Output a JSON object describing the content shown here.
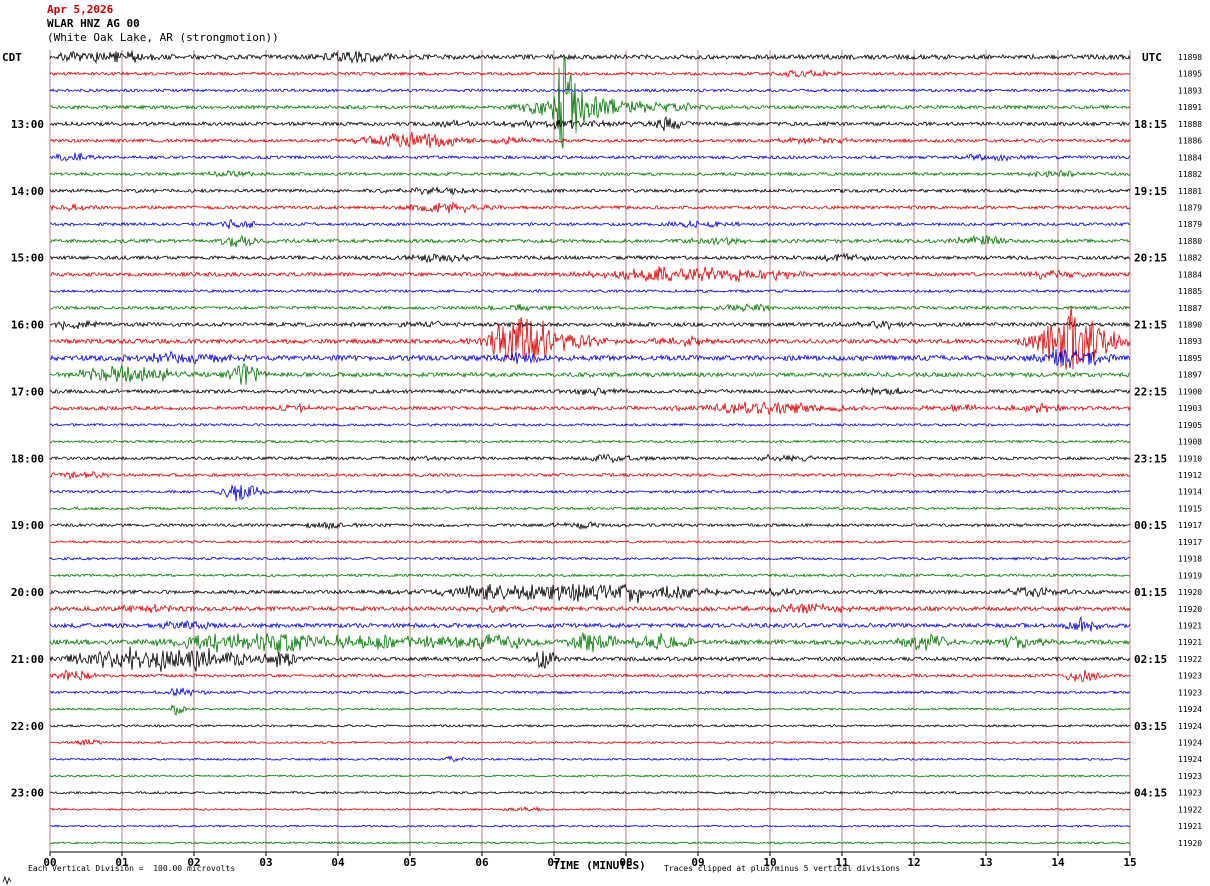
{
  "header": {
    "date": "Apr 5,2026",
    "station": "WLAR HNZ AG 00",
    "location": "(White Oak Lake, AR (strongmotion))"
  },
  "axes": {
    "left_tz": "CDT",
    "right_tz": "UTC",
    "x_title": "TIME (MINUTES)",
    "x_ticks": [
      "00",
      "01",
      "02",
      "03",
      "04",
      "05",
      "06",
      "07",
      "08",
      "09",
      "10",
      "11",
      "12",
      "13",
      "14",
      "15"
    ]
  },
  "footer": {
    "scale_note": "Each Vertical Division =  100.00 microvolts",
    "clip_note": "Traces clipped at plus/minus 5 vertical divisions"
  },
  "chart_data": {
    "type": "line",
    "title": "WLAR HNZ AG 00 helicorder (White Oak Lake, AR strongmotion)",
    "x_range_minutes": [
      0,
      15
    ],
    "minutes_per_row": 15,
    "grid": "vertical lines each minute",
    "grid_color": "#bb7f7f",
    "palette": {
      "black": "#000000",
      "red": "#dd0000",
      "blue": "#0000dd",
      "green": "#007700"
    },
    "clip_divisions": 5,
    "rows": [
      {
        "left": "",
        "right": "",
        "counter": 11898,
        "color": "black",
        "noise": 2.3,
        "events": [
          [
            1.0,
            5,
            0.45
          ],
          [
            4.3,
            5,
            0.4
          ],
          [
            0.3,
            3,
            0.2
          ]
        ]
      },
      {
        "left": "",
        "right": "",
        "counter": 11895,
        "color": "red",
        "noise": 1.5,
        "events": [
          [
            10.5,
            3,
            0.3
          ]
        ]
      },
      {
        "left": "",
        "right": "",
        "counter": 11893,
        "color": "blue",
        "noise": 1.4,
        "events": []
      },
      {
        "left": "",
        "right": "",
        "counter": 11891,
        "color": "green",
        "noise": 1.7,
        "events": [
          [
            7.15,
            48,
            0.12
          ],
          [
            7.3,
            14,
            0.45
          ],
          [
            8.1,
            4,
            0.8
          ]
        ]
      },
      {
        "left": "13:00",
        "right": "18:15",
        "counter": 11888,
        "color": "black",
        "noise": 1.8,
        "events": [
          [
            7.2,
            4,
            0.6
          ],
          [
            8.6,
            7,
            0.15
          ],
          [
            5.6,
            3,
            0.2
          ]
        ]
      },
      {
        "left": "",
        "right": "",
        "counter": 11886,
        "color": "red",
        "noise": 1.6,
        "events": [
          [
            5.0,
            8,
            0.5
          ],
          [
            10.6,
            3,
            0.3
          ],
          [
            6.5,
            3,
            0.3
          ]
        ]
      },
      {
        "left": "",
        "right": "",
        "counter": 11884,
        "color": "blue",
        "noise": 1.5,
        "events": [
          [
            0.3,
            4,
            0.2
          ],
          [
            13.1,
            4,
            0.25
          ]
        ]
      },
      {
        "left": "",
        "right": "",
        "counter": 11882,
        "color": "green",
        "noise": 1.5,
        "events": [
          [
            13.9,
            3,
            0.3
          ],
          [
            2.5,
            3,
            0.2
          ]
        ]
      },
      {
        "left": "14:00",
        "right": "19:15",
        "counter": 11881,
        "color": "black",
        "noise": 1.6,
        "events": [
          [
            5.4,
            3,
            0.4
          ]
        ]
      },
      {
        "left": "",
        "right": "",
        "counter": 11879,
        "color": "red",
        "noise": 1.6,
        "events": [
          [
            5.5,
            5,
            0.4
          ],
          [
            0.3,
            3,
            0.2
          ]
        ]
      },
      {
        "left": "",
        "right": "",
        "counter": 11879,
        "color": "blue",
        "noise": 1.5,
        "events": [
          [
            2.6,
            4,
            0.2
          ],
          [
            9.0,
            3,
            0.3
          ]
        ]
      },
      {
        "left": "",
        "right": "",
        "counter": 11880,
        "color": "green",
        "noise": 1.7,
        "events": [
          [
            2.6,
            5,
            0.25
          ],
          [
            12.9,
            4,
            0.3
          ],
          [
            9.3,
            3,
            0.3
          ]
        ]
      },
      {
        "left": "15:00",
        "right": "20:15",
        "counter": 11882,
        "color": "black",
        "noise": 1.8,
        "events": [
          [
            5.4,
            4,
            0.3
          ],
          [
            11.0,
            3,
            0.3
          ]
        ]
      },
      {
        "left": "",
        "right": "",
        "counter": 11884,
        "color": "red",
        "noise": 1.9,
        "events": [
          [
            8.7,
            7,
            0.7
          ],
          [
            9.9,
            5,
            0.4
          ],
          [
            13.9,
            4,
            0.3
          ]
        ]
      },
      {
        "left": "",
        "right": "",
        "counter": 11885,
        "color": "blue",
        "noise": 1.3,
        "events": []
      },
      {
        "left": "",
        "right": "",
        "counter": 11887,
        "color": "green",
        "noise": 1.5,
        "events": [
          [
            9.7,
            4,
            0.3
          ],
          [
            6.5,
            3,
            0.3
          ]
        ]
      },
      {
        "left": "16:00",
        "right": "21:15",
        "counter": 11890,
        "color": "black",
        "noise": 1.9,
        "events": [
          [
            0.3,
            4,
            0.25
          ],
          [
            11.5,
            3,
            0.3
          ],
          [
            5.3,
            3,
            0.25
          ]
        ]
      },
      {
        "left": "",
        "right": "",
        "counter": 11893,
        "color": "red",
        "noise": 2.2,
        "events": [
          [
            6.55,
            28,
            0.3
          ],
          [
            6.95,
            8,
            0.5
          ],
          [
            14.15,
            30,
            0.3
          ],
          [
            14.55,
            10,
            0.35
          ],
          [
            8.8,
            4,
            0.3
          ]
        ]
      },
      {
        "left": "",
        "right": "",
        "counter": 11895,
        "color": "blue",
        "noise": 2.6,
        "events": [
          [
            1.8,
            5,
            0.5
          ],
          [
            14.2,
            10,
            0.3
          ],
          [
            6.6,
            4,
            0.3
          ]
        ]
      },
      {
        "left": "",
        "right": "",
        "counter": 11897,
        "color": "green",
        "noise": 2.1,
        "events": [
          [
            0.95,
            8,
            0.4
          ],
          [
            2.7,
            10,
            0.18
          ],
          [
            1.5,
            4,
            0.4
          ]
        ]
      },
      {
        "left": "17:00",
        "right": "22:15",
        "counter": 11900,
        "color": "black",
        "noise": 1.8,
        "events": [
          [
            11.6,
            3,
            0.3
          ],
          [
            7.6,
            3,
            0.2
          ]
        ]
      },
      {
        "left": "",
        "right": "",
        "counter": 11903,
        "color": "red",
        "noise": 1.8,
        "events": [
          [
            9.9,
            6,
            0.7
          ],
          [
            13.7,
            4,
            0.3
          ],
          [
            3.5,
            3,
            0.25
          ],
          [
            12.6,
            3,
            0.3
          ]
        ]
      },
      {
        "left": "",
        "right": "",
        "counter": 11905,
        "color": "blue",
        "noise": 1.2,
        "events": []
      },
      {
        "left": "",
        "right": "",
        "counter": 11908,
        "color": "green",
        "noise": 1.2,
        "events": []
      },
      {
        "left": "18:00",
        "right": "23:15",
        "counter": 11910,
        "color": "black",
        "noise": 1.5,
        "events": [
          [
            7.8,
            3,
            0.3
          ],
          [
            10.2,
            3,
            0.3
          ],
          [
            5.1,
            2,
            0.3
          ]
        ]
      },
      {
        "left": "",
        "right": "",
        "counter": 11912,
        "color": "red",
        "noise": 1.5,
        "events": [
          [
            0.4,
            3,
            0.25
          ]
        ]
      },
      {
        "left": "",
        "right": "",
        "counter": 11914,
        "color": "blue",
        "noise": 1.3,
        "events": [
          [
            2.65,
            9,
            0.18
          ]
        ]
      },
      {
        "left": "",
        "right": "",
        "counter": 11915,
        "color": "green",
        "noise": 1.2,
        "events": []
      },
      {
        "left": "19:00",
        "right": "00:15",
        "counter": 11917,
        "color": "black",
        "noise": 1.4,
        "events": [
          [
            3.9,
            3,
            0.25
          ],
          [
            7.4,
            3,
            0.25
          ]
        ]
      },
      {
        "left": "",
        "right": "",
        "counter": 11917,
        "color": "red",
        "noise": 1.2,
        "events": []
      },
      {
        "left": "",
        "right": "",
        "counter": 11918,
        "color": "blue",
        "noise": 1.2,
        "events": []
      },
      {
        "left": "",
        "right": "",
        "counter": 11919,
        "color": "green",
        "noise": 1.2,
        "events": []
      },
      {
        "left": "20:00",
        "right": "01:15",
        "counter": 11920,
        "color": "black",
        "noise": 1.8,
        "events": [
          [
            7.2,
            8,
            1.1
          ],
          [
            6.0,
            5,
            0.4
          ],
          [
            8.3,
            6,
            0.5
          ],
          [
            13.6,
            4,
            0.3
          ],
          [
            10.1,
            3,
            0.3
          ]
        ]
      },
      {
        "left": "",
        "right": "",
        "counter": 11920,
        "color": "red",
        "noise": 2.1,
        "events": [
          [
            1.3,
            4,
            0.3
          ],
          [
            10.5,
            4,
            0.4
          ],
          [
            6.3,
            3,
            0.3
          ]
        ]
      },
      {
        "left": "",
        "right": "",
        "counter": 11921,
        "color": "blue",
        "noise": 2.1,
        "events": [
          [
            14.35,
            8,
            0.15
          ],
          [
            1.9,
            4,
            0.3
          ]
        ]
      },
      {
        "left": "",
        "right": "",
        "counter": 11921,
        "color": "green",
        "noise": 2.4,
        "events": [
          [
            2.3,
            7,
            0.5
          ],
          [
            3.2,
            11,
            0.5
          ],
          [
            4.4,
            7,
            0.4
          ],
          [
            5.3,
            5,
            0.4
          ],
          [
            6.2,
            8,
            0.3
          ],
          [
            7.55,
            10,
            0.22
          ],
          [
            8.5,
            8,
            0.3
          ],
          [
            12.1,
            7,
            0.3
          ],
          [
            13.5,
            5,
            0.3
          ]
        ]
      },
      {
        "left": "21:00",
        "right": "02:15",
        "counter": 11922,
        "color": "black",
        "noise": 1.9,
        "events": [
          [
            0.9,
            8,
            0.5
          ],
          [
            1.7,
            11,
            0.5
          ],
          [
            2.4,
            6,
            0.3
          ],
          [
            3.2,
            7,
            0.2
          ],
          [
            6.85,
            9,
            0.12
          ]
        ]
      },
      {
        "left": "",
        "right": "",
        "counter": 11923,
        "color": "red",
        "noise": 1.5,
        "events": [
          [
            0.35,
            6,
            0.15
          ],
          [
            14.3,
            5,
            0.2
          ]
        ]
      },
      {
        "left": "",
        "right": "",
        "counter": 11923,
        "color": "blue",
        "noise": 1.2,
        "events": [
          [
            1.8,
            4,
            0.2
          ]
        ]
      },
      {
        "left": "",
        "right": "",
        "counter": 11924,
        "color": "green",
        "noise": 1.0,
        "events": [
          [
            1.75,
            5,
            0.08
          ]
        ]
      },
      {
        "left": "22:00",
        "right": "03:15",
        "counter": 11924,
        "color": "black",
        "noise": 1.1,
        "events": []
      },
      {
        "left": "",
        "right": "",
        "counter": 11924,
        "color": "red",
        "noise": 1.0,
        "events": [
          [
            0.5,
            3,
            0.15
          ]
        ]
      },
      {
        "left": "",
        "right": "",
        "counter": 11924,
        "color": "blue",
        "noise": 1.0,
        "events": [
          [
            5.6,
            3,
            0.1
          ]
        ]
      },
      {
        "left": "",
        "right": "",
        "counter": 11923,
        "color": "green",
        "noise": 0.9,
        "events": []
      },
      {
        "left": "23:00",
        "right": "04:15",
        "counter": 11923,
        "color": "black",
        "noise": 1.1,
        "events": []
      },
      {
        "left": "",
        "right": "",
        "counter": 11922,
        "color": "red",
        "noise": 0.9,
        "events": [
          [
            6.6,
            2,
            0.2
          ]
        ]
      },
      {
        "left": "",
        "right": "",
        "counter": 11921,
        "color": "blue",
        "noise": 0.9,
        "events": []
      },
      {
        "left": "",
        "right": "",
        "counter": 11920,
        "color": "green",
        "noise": 0.9,
        "events": []
      }
    ]
  }
}
